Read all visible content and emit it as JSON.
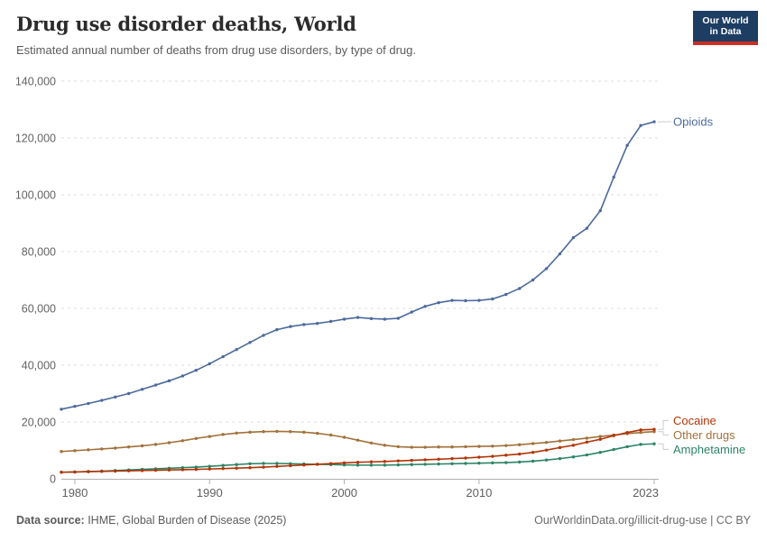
{
  "header": {
    "title": "Drug use disorder deaths, World",
    "subtitle": "Estimated annual number of deaths from drug use disorders, by type of drug."
  },
  "logo": {
    "line1": "Our World",
    "line2": "in Data",
    "bg_color": "#1d3d63",
    "accent_color": "#cb2d24"
  },
  "footer": {
    "source_label": "Data source:",
    "source_text": " IHME, Global Burden of Disease (2025)",
    "link_text": "OurWorldinData.org/illicit-drug-use | CC BY"
  },
  "chart_data": {
    "type": "line",
    "title": "Drug use disorder deaths, World",
    "xlabel": "",
    "ylabel": "",
    "ylim": [
      0,
      140000
    ],
    "yticks": [
      0,
      20000,
      40000,
      60000,
      80000,
      100000,
      120000,
      140000
    ],
    "xticks": [
      1980,
      1990,
      2000,
      2010,
      2023
    ],
    "grid": "dashed-horizontal",
    "legend_position": "right-end-labels",
    "x": [
      1979,
      1980,
      1981,
      1982,
      1983,
      1984,
      1985,
      1986,
      1987,
      1988,
      1989,
      1990,
      1991,
      1992,
      1993,
      1994,
      1995,
      1996,
      1997,
      1998,
      1999,
      2000,
      2001,
      2002,
      2003,
      2004,
      2005,
      2006,
      2007,
      2008,
      2009,
      2010,
      2011,
      2012,
      2013,
      2014,
      2015,
      2016,
      2017,
      2018,
      2019,
      2020,
      2021,
      2022,
      2023
    ],
    "series": [
      {
        "name": "Amphetamine",
        "color": "#2C8465",
        "values": [
          2300,
          2400,
          2550,
          2700,
          2900,
          3100,
          3300,
          3500,
          3700,
          3900,
          4100,
          4400,
          4700,
          5000,
          5300,
          5400,
          5400,
          5300,
          5200,
          5100,
          5000,
          4900,
          4800,
          4800,
          4800,
          4900,
          5000,
          5100,
          5200,
          5300,
          5400,
          5500,
          5600,
          5700,
          5900,
          6200,
          6600,
          7100,
          7700,
          8400,
          9300,
          10300,
          11300,
          12100,
          12300
        ]
      },
      {
        "name": "Other drugs",
        "color": "#A2713B",
        "values": [
          9600,
          9900,
          10200,
          10500,
          10800,
          11200,
          11600,
          12100,
          12700,
          13400,
          14200,
          14900,
          15600,
          16100,
          16400,
          16600,
          16700,
          16600,
          16400,
          16000,
          15400,
          14600,
          13600,
          12600,
          11800,
          11300,
          11100,
          11100,
          11200,
          11200,
          11300,
          11400,
          11500,
          11700,
          12000,
          12400,
          12800,
          13300,
          13800,
          14300,
          14900,
          15400,
          15900,
          16300,
          16600
        ]
      },
      {
        "name": "Cocaine",
        "color": "#B13507",
        "values": [
          2300,
          2400,
          2500,
          2600,
          2700,
          2800,
          2900,
          3000,
          3100,
          3200,
          3300,
          3450,
          3600,
          3750,
          3900,
          4100,
          4350,
          4600,
          4850,
          5100,
          5350,
          5600,
          5800,
          5950,
          6100,
          6300,
          6500,
          6700,
          6900,
          7100,
          7300,
          7600,
          7900,
          8300,
          8700,
          9300,
          10100,
          11000,
          11800,
          12900,
          13900,
          15200,
          16300,
          17200,
          17400
        ]
      },
      {
        "name": "Opioids",
        "color": "#4C6A9C",
        "values": [
          24500,
          25500,
          26500,
          27600,
          28800,
          30000,
          31500,
          33000,
          34500,
          36200,
          38200,
          40500,
          43000,
          45500,
          48000,
          50500,
          52500,
          53600,
          54300,
          54700,
          55400,
          56200,
          56800,
          56400,
          56200,
          56500,
          58700,
          60700,
          62000,
          62800,
          62700,
          62800,
          63300,
          64900,
          67000,
          70000,
          74000,
          79200,
          84900,
          88200,
          94400,
          106200,
          117400,
          124400,
          125700
        ]
      }
    ]
  }
}
